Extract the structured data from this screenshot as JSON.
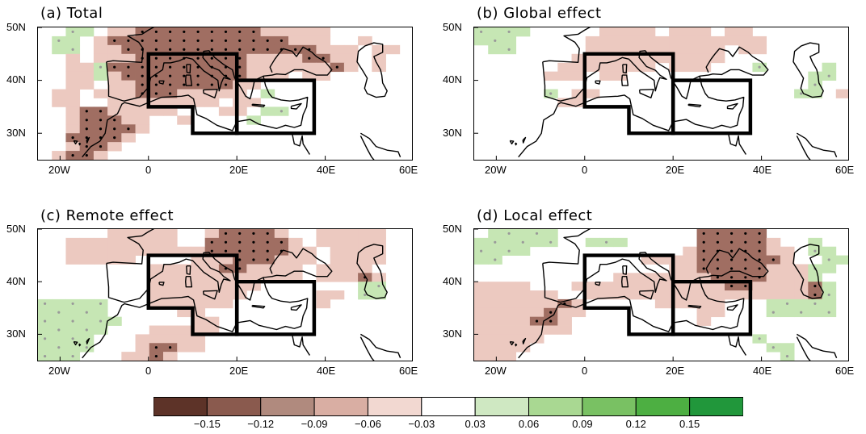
{
  "panels": [
    {
      "id": "a",
      "title": "(a) Total",
      "grid": [
        "..gg.ppPPPPPPPPPppppp......",
        ".gg.pPPPPPPPPPPPPPppp..p...",
        ".gg.ppPPPPPPPPPPPPPPppp.pp.",
        "..p.pppPPPPPPPPppppPPpp.p..",
        "..ppgPPPPPPPPPPppppppPp.p..",
        "..ppgpPPPPPPPPPppp.pp......",
        "..pp.ppPPPPPPPpp...........",
        ".pp.pppPPPppppp.g..........",
        ".pp..pppppppp.pp...........",
        "..pPPppppp...pp.gg.........",
        "..pPPPpp..p....g...........",
        "..pPPPPp...................",
        "..PPPPp....................",
        "..pPPp.....................",
        ".pPPp......................"
      ]
    },
    {
      "id": "b",
      "title": "(b) Global effect",
      "grid": [
        "gggg.....pppp.ppp.pp.......",
        "ggg.....ppppppppppppp......",
        ".gg.....pppppppppp.pp......",
        ".......ppppppppppp.........",
        "......ppppppp.ppp...g....g.",
        ".....ppp.pp.............gg.",
        "........................g..",
        ".....g.pp..............gg.p",
        "......pp...................",
        "...........................",
        "...........................",
        "...........................",
        "...........................",
        "...........................",
        "..........................."
      ]
    },
    {
      "id": "c",
      "title": "(c) Remote effect",
      "grid": [
        ".....ppppp..pPPPPp..ppppp..",
        "..pppppppp..PPPPPPp.ppppp..",
        "..ppppppppppPPPPPPpp.pppp..",
        "..ppppp....pppPPPppp.pppp..",
        "........pppppPPpppp.pppp...",
        "........ppppppppppp.pppPp..",
        "........pppppppp.......gg..",
        "........ppppppp.....pp.gg..",
        "ggggg...pppppp......p......",
        "ggggg.....pp...............",
        "gggggg.....pp..............",
        "ggggg...ppppp..............",
        "gggg...ppppp...............",
        "gggg...pPPpp...............",
        "ggg...ppPp................."
      ]
    },
    {
      "id": "d",
      "title": "(d) Local effect",
      "grid": [
        ".ggggg..........PPPPP......",
        "gggggg..ggg.....PPPPPp..g..",
        "gggg...........pPPPPPpp.gg.",
        "gg..........ppppPPPPPPp..gg",
        "..............ppPPPPPpppgg.",
        "..........pppppppPPPPpppg..",
        "pppp...pppppppppppPPppppPg.",
        "pppppp..ppppppppppppppppPg.",
        "ppppppPp.....ppppp...ggggg.",
        "pppppPpp........pp...ggggg.",
        "ppppPPp.........p..........",
        "ppppppp....................",
        "ppppp...............g......",
        "pppp.................gg....",
        "ppp...................g...."
      ]
    }
  ],
  "map_axes": {
    "x_ticks": [
      "20W",
      "0",
      "20E",
      "40E",
      "60E"
    ],
    "y_ticks": [
      "50N",
      "40N",
      "30N"
    ]
  },
  "colorbar": {
    "colors": [
      "#5d3328",
      "#8a5a4e",
      "#b08a7e",
      "#d9aea3",
      "#f2d8d1",
      "#ffffff",
      "#cfe8c2",
      "#a9d892",
      "#79c163",
      "#4daf42",
      "#21973b"
    ],
    "labels": [
      "-0.15",
      "-0.12",
      "-0.09",
      "-0.06",
      "-0.03",
      "0.03",
      "0.06",
      "0.09",
      "0.12",
      "0.15"
    ]
  }
}
